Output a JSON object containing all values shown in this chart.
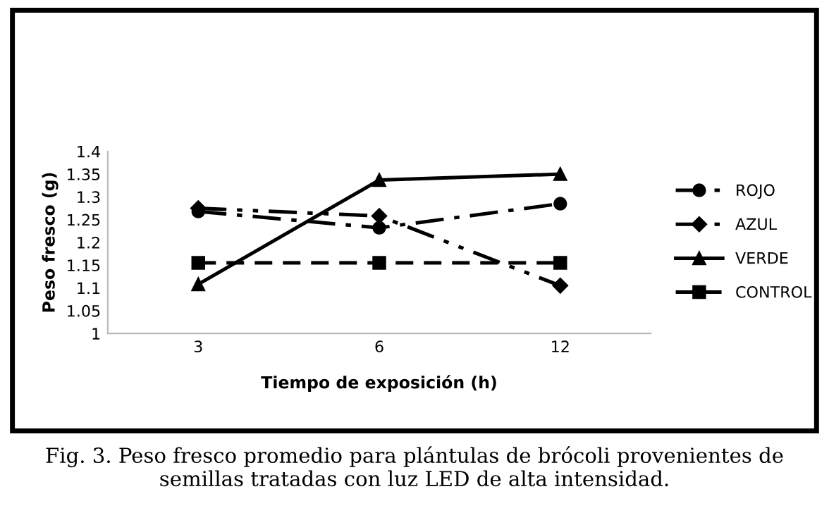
{
  "chart_data": {
    "type": "line",
    "xlabel": "Tiempo de exposición (h)",
    "ylabel": "Peso fresco (g)",
    "categories": [
      "3",
      "6",
      "12"
    ],
    "series": [
      {
        "name": "ROJO",
        "color": "#000000",
        "marker": "circle",
        "line_style": "dashdot",
        "values": [
          1.268,
          1.232,
          1.285
        ]
      },
      {
        "name": "AZUL",
        "color": "#000000",
        "marker": "diamond",
        "line_style": "dashdotdot",
        "values": [
          1.275,
          1.258,
          1.105
        ]
      },
      {
        "name": "VERDE",
        "color": "#000000",
        "marker": "triangle",
        "line_style": "solid",
        "values": [
          1.108,
          1.337,
          1.35
        ]
      },
      {
        "name": "CONTROL",
        "color": "#000000",
        "marker": "square",
        "line_style": "dashed",
        "values": [
          1.155,
          1.155,
          1.155
        ]
      }
    ],
    "ylim": [
      1,
      1.4
    ],
    "yticks": [
      1,
      1.05,
      1.1,
      1.15,
      1.2,
      1.25,
      1.3,
      1.35,
      1.4
    ],
    "grid": false,
    "legend": "right",
    "annotations": [
      "Fig. 3. Peso fresco promedio para plántulas de brócoli provenientes de semillas tratadas con luz LED de alta intensidad."
    ]
  }
}
